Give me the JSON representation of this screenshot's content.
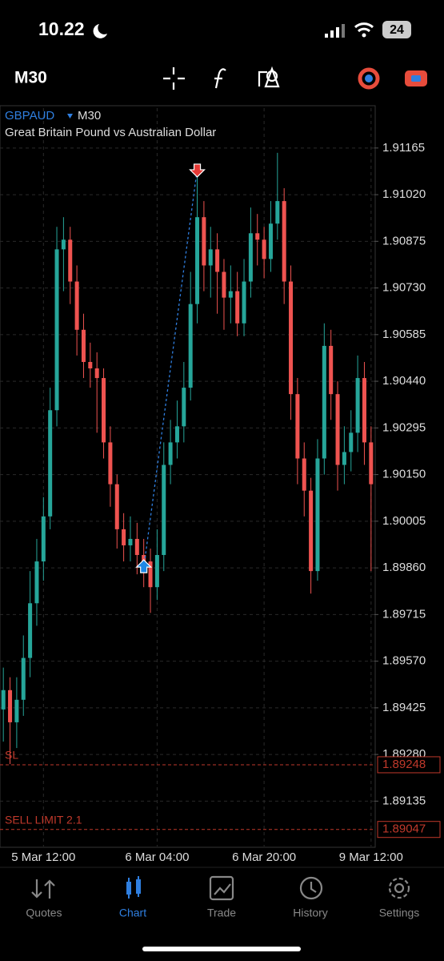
{
  "status_bar": {
    "time": "10.22",
    "battery": "24"
  },
  "toolbar": {
    "timeframe": "M30"
  },
  "chart_header": {
    "symbol": "GBPAUD",
    "timeframe": "M30",
    "description": "Great Britain Pound vs Australian Dollar"
  },
  "chart_data": {
    "type": "candlestick",
    "categories": [
      null,
      null,
      null,
      null,
      null,
      null,
      "5 Mar 12:00",
      null,
      null,
      null,
      null,
      null,
      null,
      null,
      null,
      null,
      null,
      null,
      null,
      null,
      null,
      null,
      null,
      "6 Mar 04:00",
      null,
      null,
      null,
      null,
      null,
      null,
      null,
      null,
      null,
      null,
      null,
      null,
      null,
      null,
      null,
      "6 Mar 20:00",
      null,
      null,
      null,
      null,
      null,
      null,
      null,
      null,
      null,
      null,
      null,
      null,
      null,
      null,
      null,
      "9 Mar 12:00"
    ],
    "open": [
      1.8942,
      1.8948,
      1.8938,
      1.8945,
      1.8958,
      1.8975,
      1.8988,
      1.9002,
      1.9035,
      1.9085,
      1.9088,
      1.9075,
      1.906,
      1.905,
      1.9048,
      1.9045,
      1.9025,
      1.9012,
      1.8998,
      1.8993,
      1.8995,
      1.899,
      1.8988,
      1.898,
      1.899,
      1.9018,
      1.9025,
      1.903,
      1.9042,
      1.9068,
      1.9095,
      1.908,
      1.9085,
      1.9078,
      1.907,
      1.9072,
      1.9062,
      1.9075,
      1.909,
      1.9088,
      1.9082,
      1.9093,
      1.91,
      1.9075,
      1.904,
      1.902,
      1.901,
      1.8985,
      1.902,
      1.9055,
      1.904,
      1.9018,
      1.9022,
      1.9028,
      1.9045,
      1.9025
    ],
    "high": [
      1.8955,
      1.8952,
      1.8952,
      1.8965,
      1.8985,
      1.8995,
      1.9008,
      1.9042,
      1.9092,
      1.9095,
      1.9092,
      1.908,
      1.9065,
      1.9056,
      1.9053,
      1.9048,
      1.903,
      1.9015,
      1.9003,
      1.9002,
      1.9,
      1.8995,
      1.8992,
      1.8998,
      1.9025,
      1.9032,
      1.9038,
      1.905,
      1.9078,
      1.911,
      1.91,
      1.9092,
      1.909,
      1.9082,
      1.908,
      1.9078,
      1.9082,
      1.9098,
      1.9096,
      1.9092,
      1.91,
      1.9115,
      1.9104,
      1.908,
      1.9045,
      1.9025,
      1.9014,
      1.9026,
      1.9062,
      1.906,
      1.9044,
      1.903,
      1.9035,
      1.9052,
      1.905,
      1.903
    ],
    "low": [
      1.8932,
      1.8925,
      1.893,
      1.894,
      1.8952,
      1.8968,
      1.8982,
      1.8998,
      1.903,
      1.9072,
      1.9068,
      1.9052,
      1.9045,
      1.9042,
      1.9028,
      1.902,
      1.9005,
      1.8992,
      1.8988,
      1.8988,
      1.8984,
      1.898,
      1.8972,
      1.8976,
      1.8985,
      1.9012,
      1.902,
      1.9025,
      1.9038,
      1.9062,
      1.9072,
      1.907,
      1.9065,
      1.906,
      1.9062,
      1.9058,
      1.9058,
      1.907,
      1.908,
      1.9076,
      1.9078,
      1.9088,
      1.9068,
      1.9032,
      1.9012,
      1.9002,
      1.8978,
      1.8982,
      1.9015,
      1.9032,
      1.901,
      1.9012,
      1.9016,
      1.9022,
      1.9018,
      1.8985
    ],
    "close": [
      1.8948,
      1.8938,
      1.8945,
      1.8958,
      1.8975,
      1.8988,
      1.9002,
      1.9035,
      1.9085,
      1.9088,
      1.9075,
      1.906,
      1.905,
      1.9048,
      1.9045,
      1.9025,
      1.9012,
      1.8998,
      1.8993,
      1.8995,
      1.899,
      1.8988,
      1.898,
      1.899,
      1.9018,
      1.9025,
      1.903,
      1.9042,
      1.9068,
      1.9095,
      1.908,
      1.9085,
      1.9078,
      1.907,
      1.9072,
      1.9062,
      1.9075,
      1.909,
      1.9088,
      1.9082,
      1.9093,
      1.91,
      1.9075,
      1.904,
      1.902,
      1.901,
      1.8985,
      1.902,
      1.9055,
      1.904,
      1.9018,
      1.9022,
      1.9028,
      1.9045,
      1.9025,
      1.9012
    ],
    "up_color": "#26a69a",
    "down_color": "#ef5350",
    "ylim": [
      1.88994,
      1.91289
    ],
    "yticks": [
      {
        "value": 1.91165,
        "label": "1.91165"
      },
      {
        "value": 1.9102,
        "label": "1.91020"
      },
      {
        "value": 1.90875,
        "label": "1.90875"
      },
      {
        "value": 1.9073,
        "label": "1.90730"
      },
      {
        "value": 1.90585,
        "label": "1.90585"
      },
      {
        "value": 1.9044,
        "label": "1.90440"
      },
      {
        "value": 1.90295,
        "label": "1.90295"
      },
      {
        "value": 1.9015,
        "label": "1.90150"
      },
      {
        "value": 1.90005,
        "label": "1.90005"
      },
      {
        "value": 1.8986,
        "label": "1.89860"
      },
      {
        "value": 1.89715,
        "label": "1.89715"
      },
      {
        "value": 1.8957,
        "label": "1.89570"
      },
      {
        "value": 1.89425,
        "label": "1.89425"
      },
      {
        "value": 1.8928,
        "label": "1.89280"
      },
      {
        "value": 1.89135,
        "label": "1.89135"
      }
    ],
    "grid": true,
    "deals": [
      {
        "index": 21,
        "price": 1.8986,
        "color": "#1e88e5"
      },
      {
        "index": 29,
        "price": 1.911,
        "color": "#e53935"
      }
    ],
    "orders": [
      {
        "label": "SL",
        "value": 1.89248
      },
      {
        "label": "SELL LIMIT 2.1",
        "value": 1.89047
      }
    ],
    "order_color": "#c0392b"
  },
  "tabs": [
    "Quotes",
    "Chart",
    "Trade",
    "History",
    "Settings"
  ],
  "active_tab": 1
}
